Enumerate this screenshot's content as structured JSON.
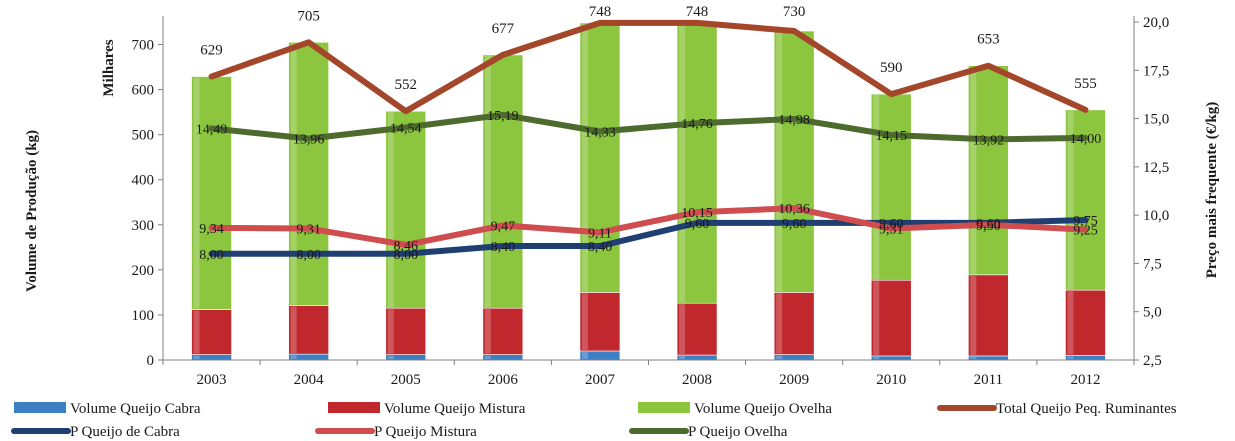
{
  "chart_data": {
    "type": "bar",
    "stacked": true,
    "title": "",
    "categories": [
      "2003",
      "2004",
      "2005",
      "2006",
      "2007",
      "2008",
      "2009",
      "2010",
      "2011",
      "2012"
    ],
    "ylabel": "Volume de Produção (kg)",
    "ylabel_unit": "Milhares",
    "ylabel_right": "Preço mais frequente (€/kg)",
    "ylim": [
      0,
      750
    ],
    "y_ticks": [
      "0",
      "100",
      "200",
      "300",
      "400",
      "500",
      "600",
      "700"
    ],
    "ylim_right": [
      2.5,
      20.0
    ],
    "y_ticks_right": [
      "2,5",
      "5,0",
      "7,5",
      "10,0",
      "12,5",
      "15,0",
      "17,5",
      "20,0"
    ],
    "grid": false,
    "legend_position": "bottom",
    "bar_series": [
      {
        "name": "Volume Queijo Cabra",
        "color": "#3d7fc4",
        "values": [
          12,
          13,
          12,
          12,
          20,
          11,
          12,
          9,
          9,
          10
        ]
      },
      {
        "name": "Volume Queijo Mistura",
        "color": "#c0282e",
        "values": [
          100,
          108,
          103,
          103,
          130,
          115,
          138,
          168,
          180,
          145
        ]
      },
      {
        "name": "Volume Queijo Ovelha",
        "color": "#8cc63e",
        "values": [
          517,
          584,
          437,
          562,
          598,
          622,
          580,
          413,
          464,
          400
        ]
      }
    ],
    "total_series": {
      "name": "Total Queijo Peq. Ruminantes",
      "color": "#a3462a",
      "values": [
        629,
        705,
        552,
        677,
        748,
        748,
        730,
        590,
        653,
        555
      ],
      "labels": [
        "629",
        "705",
        "552",
        "677",
        "748",
        "748",
        "730",
        "590",
        "653",
        "555"
      ]
    },
    "line_series": [
      {
        "name": "P  Queijo de Cabra",
        "color": "#1f3f73",
        "axis": "right",
        "values": [
          8.0,
          8.0,
          8.0,
          8.4,
          8.4,
          9.6,
          9.6,
          9.6,
          9.6,
          9.75
        ],
        "labels": [
          "8,00",
          "8,00",
          "8,00",
          "8,40",
          "8,40",
          "9,60",
          "9,60",
          "9,60",
          "9,60",
          "9,75"
        ]
      },
      {
        "name": "P  Queijo Mistura",
        "color": "#cf4d4f",
        "axis": "right",
        "values": [
          9.34,
          9.31,
          8.46,
          9.47,
          9.11,
          10.15,
          10.36,
          9.31,
          9.5,
          9.25
        ],
        "labels": [
          "9,34",
          "9,31",
          "8,46",
          "9,47",
          "9,11",
          "10,15",
          "10,36",
          "9,31",
          "9,50",
          "9,25"
        ]
      },
      {
        "name": "P  Queijo Ovelha",
        "color": "#4e6b2e",
        "axis": "right",
        "values": [
          14.49,
          13.96,
          14.54,
          15.19,
          14.33,
          14.76,
          14.98,
          14.15,
          13.92,
          14.0
        ],
        "labels": [
          "14,49",
          "13,96",
          "14,54",
          "15,19",
          "14,33",
          "14,76",
          "14,98",
          "14,15",
          "13,92",
          "14,00"
        ]
      }
    ]
  }
}
